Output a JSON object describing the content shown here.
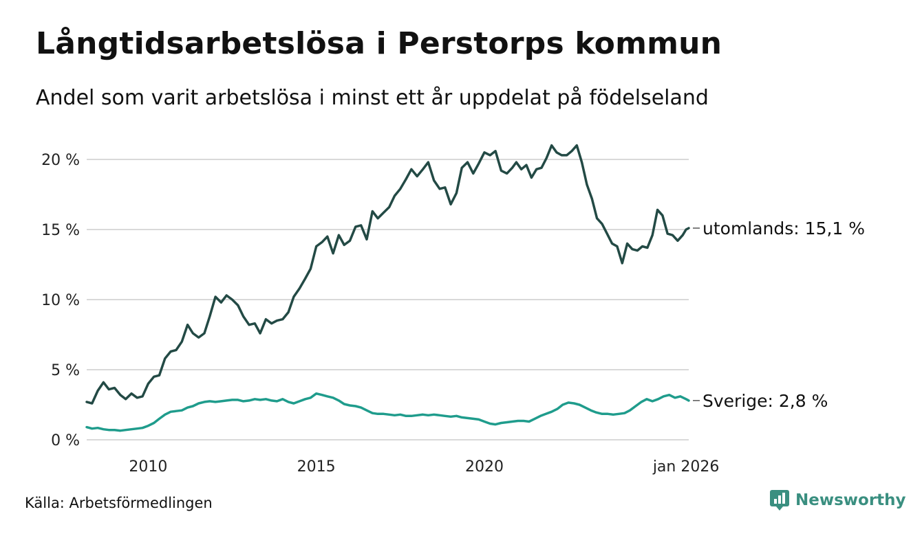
{
  "header": {
    "title": "Långtidsarbetslösa i Perstorps kommun",
    "subtitle": "Andel som varit arbetslösa i minst ett år uppdelat på födelseland"
  },
  "footer": {
    "source": "Källa: Arbetsförmedlingen",
    "brand": "Newsworthy"
  },
  "colors": {
    "utomlands": "#234a45",
    "sverige": "#1f9c8c",
    "grid": "#d9d9d9",
    "brand": "#3a8f80"
  },
  "chart_data": {
    "type": "line",
    "title": "Långtidsarbetslösa i Perstorps kommun",
    "xlabel": "",
    "ylabel": "",
    "xlim": [
      2008.17,
      2026.08
    ],
    "ylim": [
      0,
      21
    ],
    "y_ticks": [
      0,
      5,
      10,
      15,
      20
    ],
    "y_tick_labels": [
      "0 %",
      "5 %",
      "10 %",
      "15 %",
      "20 %"
    ],
    "x_ticks": [
      2010,
      2015,
      2020,
      2026.0
    ],
    "x_tick_labels": [
      "2010",
      "2015",
      "2020",
      "jan 2026"
    ],
    "grid": true,
    "series": [
      {
        "name": "utomlands",
        "end_label": "utomlands: 15,1 %",
        "color": "#234a45",
        "points": [
          [
            2008.17,
            2.7
          ],
          [
            2008.33,
            2.6
          ],
          [
            2008.5,
            3.5
          ],
          [
            2008.67,
            4.1
          ],
          [
            2008.83,
            3.6
          ],
          [
            2009.0,
            3.7
          ],
          [
            2009.17,
            3.2
          ],
          [
            2009.33,
            2.9
          ],
          [
            2009.5,
            3.3
          ],
          [
            2009.67,
            3.0
          ],
          [
            2009.83,
            3.1
          ],
          [
            2010.0,
            4.0
          ],
          [
            2010.17,
            4.5
          ],
          [
            2010.33,
            4.6
          ],
          [
            2010.5,
            5.8
          ],
          [
            2010.67,
            6.3
          ],
          [
            2010.83,
            6.4
          ],
          [
            2011.0,
            7.0
          ],
          [
            2011.17,
            8.2
          ],
          [
            2011.33,
            7.6
          ],
          [
            2011.5,
            7.3
          ],
          [
            2011.67,
            7.6
          ],
          [
            2011.83,
            8.8
          ],
          [
            2012.0,
            10.2
          ],
          [
            2012.17,
            9.8
          ],
          [
            2012.33,
            10.3
          ],
          [
            2012.5,
            10.0
          ],
          [
            2012.67,
            9.6
          ],
          [
            2012.83,
            8.8
          ],
          [
            2013.0,
            8.2
          ],
          [
            2013.17,
            8.3
          ],
          [
            2013.33,
            7.6
          ],
          [
            2013.5,
            8.6
          ],
          [
            2013.67,
            8.3
          ],
          [
            2013.83,
            8.5
          ],
          [
            2014.0,
            8.6
          ],
          [
            2014.17,
            9.1
          ],
          [
            2014.33,
            10.2
          ],
          [
            2014.5,
            10.8
          ],
          [
            2014.67,
            11.5
          ],
          [
            2014.83,
            12.2
          ],
          [
            2015.0,
            13.8
          ],
          [
            2015.17,
            14.1
          ],
          [
            2015.33,
            14.5
          ],
          [
            2015.5,
            13.3
          ],
          [
            2015.67,
            14.6
          ],
          [
            2015.83,
            13.9
          ],
          [
            2016.0,
            14.2
          ],
          [
            2016.17,
            15.2
          ],
          [
            2016.33,
            15.3
          ],
          [
            2016.5,
            14.3
          ],
          [
            2016.67,
            16.3
          ],
          [
            2016.83,
            15.8
          ],
          [
            2017.0,
            16.2
          ],
          [
            2017.17,
            16.6
          ],
          [
            2017.33,
            17.4
          ],
          [
            2017.5,
            17.9
          ],
          [
            2017.67,
            18.6
          ],
          [
            2017.83,
            19.3
          ],
          [
            2018.0,
            18.8
          ],
          [
            2018.17,
            19.3
          ],
          [
            2018.33,
            19.8
          ],
          [
            2018.5,
            18.5
          ],
          [
            2018.67,
            17.9
          ],
          [
            2018.83,
            18.0
          ],
          [
            2019.0,
            16.8
          ],
          [
            2019.17,
            17.6
          ],
          [
            2019.33,
            19.4
          ],
          [
            2019.5,
            19.8
          ],
          [
            2019.67,
            19.0
          ],
          [
            2019.83,
            19.7
          ],
          [
            2020.0,
            20.5
          ],
          [
            2020.17,
            20.3
          ],
          [
            2020.33,
            20.6
          ],
          [
            2020.5,
            19.2
          ],
          [
            2020.67,
            19.0
          ],
          [
            2020.83,
            19.4
          ],
          [
            2020.95,
            19.8
          ],
          [
            2021.1,
            19.3
          ],
          [
            2021.25,
            19.6
          ],
          [
            2021.4,
            18.7
          ],
          [
            2021.55,
            19.3
          ],
          [
            2021.7,
            19.4
          ],
          [
            2021.85,
            20.1
          ],
          [
            2022.0,
            21.0
          ],
          [
            2022.15,
            20.5
          ],
          [
            2022.3,
            20.3
          ],
          [
            2022.45,
            20.3
          ],
          [
            2022.6,
            20.6
          ],
          [
            2022.75,
            21.0
          ],
          [
            2022.9,
            19.8
          ],
          [
            2023.05,
            18.2
          ],
          [
            2023.2,
            17.2
          ],
          [
            2023.35,
            15.8
          ],
          [
            2023.5,
            15.4
          ],
          [
            2023.65,
            14.7
          ],
          [
            2023.8,
            14.0
          ],
          [
            2023.95,
            13.8
          ],
          [
            2024.1,
            12.6
          ],
          [
            2024.25,
            14.0
          ],
          [
            2024.4,
            13.6
          ],
          [
            2024.55,
            13.5
          ],
          [
            2024.7,
            13.8
          ],
          [
            2024.85,
            13.7
          ],
          [
            2025.0,
            14.6
          ],
          [
            2025.15,
            16.4
          ],
          [
            2025.3,
            16.0
          ],
          [
            2025.45,
            14.7
          ],
          [
            2025.6,
            14.6
          ],
          [
            2025.75,
            14.2
          ],
          [
            2025.9,
            14.6
          ],
          [
            2026.0,
            15.0
          ],
          [
            2026.08,
            15.1
          ]
        ]
      },
      {
        "name": "Sverige",
        "end_label": "Sverige:  2,8 %",
        "color": "#1f9c8c",
        "points": [
          [
            2008.17,
            0.9
          ],
          [
            2008.33,
            0.8
          ],
          [
            2008.5,
            0.85
          ],
          [
            2008.67,
            0.75
          ],
          [
            2008.83,
            0.7
          ],
          [
            2009.0,
            0.7
          ],
          [
            2009.17,
            0.65
          ],
          [
            2009.33,
            0.7
          ],
          [
            2009.5,
            0.75
          ],
          [
            2009.67,
            0.8
          ],
          [
            2009.83,
            0.85
          ],
          [
            2010.0,
            1.0
          ],
          [
            2010.17,
            1.2
          ],
          [
            2010.33,
            1.5
          ],
          [
            2010.5,
            1.8
          ],
          [
            2010.67,
            2.0
          ],
          [
            2010.83,
            2.05
          ],
          [
            2011.0,
            2.1
          ],
          [
            2011.17,
            2.3
          ],
          [
            2011.33,
            2.4
          ],
          [
            2011.5,
            2.6
          ],
          [
            2011.67,
            2.7
          ],
          [
            2011.83,
            2.75
          ],
          [
            2012.0,
            2.7
          ],
          [
            2012.17,
            2.75
          ],
          [
            2012.33,
            2.8
          ],
          [
            2012.5,
            2.85
          ],
          [
            2012.67,
            2.85
          ],
          [
            2012.83,
            2.75
          ],
          [
            2013.0,
            2.8
          ],
          [
            2013.17,
            2.9
          ],
          [
            2013.33,
            2.85
          ],
          [
            2013.5,
            2.9
          ],
          [
            2013.67,
            2.8
          ],
          [
            2013.83,
            2.75
          ],
          [
            2014.0,
            2.9
          ],
          [
            2014.17,
            2.7
          ],
          [
            2014.33,
            2.6
          ],
          [
            2014.5,
            2.75
          ],
          [
            2014.67,
            2.9
          ],
          [
            2014.83,
            3.0
          ],
          [
            2015.0,
            3.3
          ],
          [
            2015.17,
            3.2
          ],
          [
            2015.33,
            3.1
          ],
          [
            2015.5,
            3.0
          ],
          [
            2015.67,
            2.8
          ],
          [
            2015.83,
            2.55
          ],
          [
            2016.0,
            2.45
          ],
          [
            2016.17,
            2.4
          ],
          [
            2016.33,
            2.3
          ],
          [
            2016.5,
            2.1
          ],
          [
            2016.67,
            1.9
          ],
          [
            2016.83,
            1.85
          ],
          [
            2017.0,
            1.85
          ],
          [
            2017.17,
            1.8
          ],
          [
            2017.33,
            1.75
          ],
          [
            2017.5,
            1.8
          ],
          [
            2017.67,
            1.7
          ],
          [
            2017.83,
            1.7
          ],
          [
            2018.0,
            1.75
          ],
          [
            2018.17,
            1.8
          ],
          [
            2018.33,
            1.75
          ],
          [
            2018.5,
            1.8
          ],
          [
            2018.67,
            1.75
          ],
          [
            2018.83,
            1.7
          ],
          [
            2019.0,
            1.65
          ],
          [
            2019.17,
            1.7
          ],
          [
            2019.33,
            1.6
          ],
          [
            2019.5,
            1.55
          ],
          [
            2019.67,
            1.5
          ],
          [
            2019.83,
            1.45
          ],
          [
            2020.0,
            1.3
          ],
          [
            2020.17,
            1.15
          ],
          [
            2020.33,
            1.1
          ],
          [
            2020.5,
            1.2
          ],
          [
            2020.67,
            1.25
          ],
          [
            2020.83,
            1.3
          ],
          [
            2021.0,
            1.35
          ],
          [
            2021.17,
            1.35
          ],
          [
            2021.33,
            1.3
          ],
          [
            2021.5,
            1.5
          ],
          [
            2021.67,
            1.7
          ],
          [
            2021.83,
            1.85
          ],
          [
            2022.0,
            2.0
          ],
          [
            2022.17,
            2.2
          ],
          [
            2022.33,
            2.5
          ],
          [
            2022.5,
            2.65
          ],
          [
            2022.67,
            2.6
          ],
          [
            2022.83,
            2.5
          ],
          [
            2023.0,
            2.3
          ],
          [
            2023.17,
            2.1
          ],
          [
            2023.33,
            1.95
          ],
          [
            2023.5,
            1.85
          ],
          [
            2023.67,
            1.85
          ],
          [
            2023.83,
            1.8
          ],
          [
            2024.0,
            1.85
          ],
          [
            2024.17,
            1.9
          ],
          [
            2024.33,
            2.1
          ],
          [
            2024.5,
            2.4
          ],
          [
            2024.67,
            2.7
          ],
          [
            2024.83,
            2.9
          ],
          [
            2025.0,
            2.75
          ],
          [
            2025.17,
            2.9
          ],
          [
            2025.33,
            3.1
          ],
          [
            2025.5,
            3.2
          ],
          [
            2025.67,
            3.0
          ],
          [
            2025.83,
            3.1
          ],
          [
            2026.0,
            2.9
          ],
          [
            2026.08,
            2.8
          ]
        ]
      }
    ]
  }
}
